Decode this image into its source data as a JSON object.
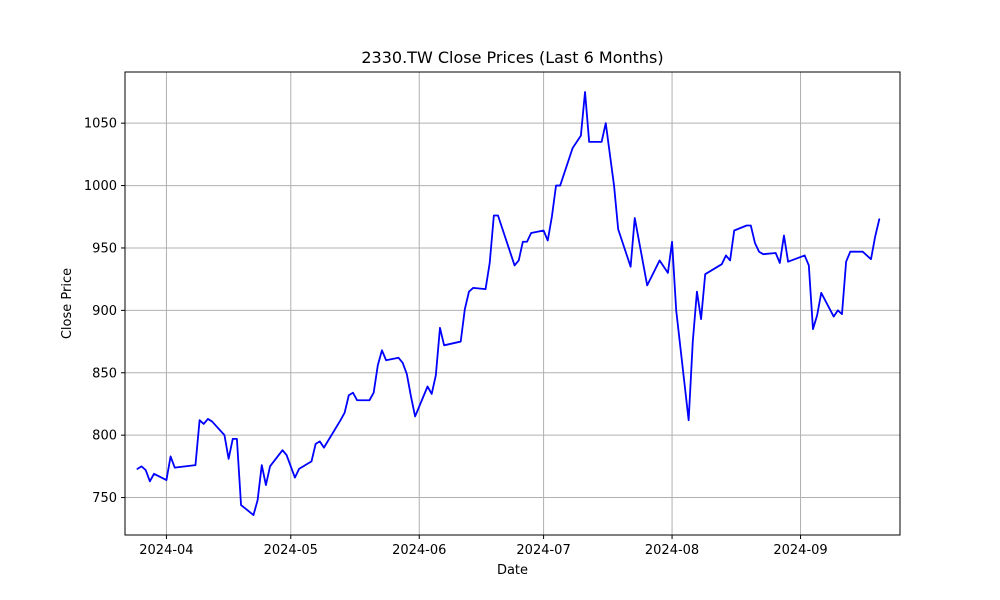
{
  "chart_data": {
    "type": "line",
    "title": "2330.TW Close Prices (Last 6 Months)",
    "xlabel": "Date",
    "ylabel": "Close Price",
    "grid": true,
    "xlim": [
      "2024-03-22",
      "2024-09-25"
    ],
    "ylim": [
      720,
      1091
    ],
    "x_ticks": [
      "2024-04-01",
      "2024-05-01",
      "2024-06-01",
      "2024-07-01",
      "2024-08-01",
      "2024-09-01"
    ],
    "x_tick_labels": [
      "2024-04",
      "2024-05",
      "2024-06",
      "2024-07",
      "2024-08",
      "2024-09"
    ],
    "y_ticks": [
      750,
      800,
      850,
      900,
      950,
      1000,
      1050
    ],
    "y_tick_labels": [
      "750",
      "800",
      "850",
      "900",
      "950",
      "1000",
      "1050"
    ],
    "series": [
      {
        "color": "#0000ff",
        "points": [
          [
            "2024-03-25",
            773
          ],
          [
            "2024-03-26",
            775
          ],
          [
            "2024-03-27",
            772
          ],
          [
            "2024-03-28",
            763
          ],
          [
            "2024-03-29",
            769
          ],
          [
            "2024-04-01",
            764
          ],
          [
            "2024-04-02",
            783
          ],
          [
            "2024-04-03",
            774
          ],
          [
            "2024-04-08",
            776
          ],
          [
            "2024-04-09",
            812
          ],
          [
            "2024-04-10",
            809
          ],
          [
            "2024-04-11",
            813
          ],
          [
            "2024-04-12",
            811
          ],
          [
            "2024-04-15",
            800
          ],
          [
            "2024-04-16",
            781
          ],
          [
            "2024-04-17",
            797
          ],
          [
            "2024-04-18",
            797
          ],
          [
            "2024-04-19",
            744
          ],
          [
            "2024-04-22",
            736
          ],
          [
            "2024-04-23",
            748
          ],
          [
            "2024-04-24",
            776
          ],
          [
            "2024-04-25",
            760
          ],
          [
            "2024-04-26",
            775
          ],
          [
            "2024-04-29",
            788
          ],
          [
            "2024-04-30",
            784
          ],
          [
            "2024-05-02",
            766
          ],
          [
            "2024-05-03",
            773
          ],
          [
            "2024-05-06",
            779
          ],
          [
            "2024-05-07",
            793
          ],
          [
            "2024-05-08",
            795
          ],
          [
            "2024-05-09",
            790
          ],
          [
            "2024-05-13",
            812
          ],
          [
            "2024-05-14",
            818
          ],
          [
            "2024-05-15",
            832
          ],
          [
            "2024-05-16",
            834
          ],
          [
            "2024-05-17",
            828
          ],
          [
            "2024-05-20",
            828
          ],
          [
            "2024-05-21",
            834
          ],
          [
            "2024-05-22",
            856
          ],
          [
            "2024-05-23",
            868
          ],
          [
            "2024-05-24",
            860
          ],
          [
            "2024-05-27",
            862
          ],
          [
            "2024-05-28",
            858
          ],
          [
            "2024-05-29",
            849
          ],
          [
            "2024-05-30",
            831
          ],
          [
            "2024-05-31",
            815
          ],
          [
            "2024-06-03",
            839
          ],
          [
            "2024-06-04",
            833
          ],
          [
            "2024-06-05",
            848
          ],
          [
            "2024-06-06",
            886
          ],
          [
            "2024-06-07",
            872
          ],
          [
            "2024-06-11",
            875
          ],
          [
            "2024-06-12",
            901
          ],
          [
            "2024-06-13",
            915
          ],
          [
            "2024-06-14",
            918
          ],
          [
            "2024-06-17",
            917
          ],
          [
            "2024-06-18",
            938
          ],
          [
            "2024-06-19",
            976
          ],
          [
            "2024-06-20",
            976
          ],
          [
            "2024-06-24",
            936
          ],
          [
            "2024-06-25",
            940
          ],
          [
            "2024-06-26",
            955
          ],
          [
            "2024-06-27",
            955
          ],
          [
            "2024-06-28",
            962
          ],
          [
            "2024-07-01",
            964
          ],
          [
            "2024-07-02",
            956
          ],
          [
            "2024-07-03",
            975
          ],
          [
            "2024-07-04",
            1000
          ],
          [
            "2024-07-05",
            1000
          ],
          [
            "2024-07-08",
            1030
          ],
          [
            "2024-07-10",
            1040
          ],
          [
            "2024-07-11",
            1075
          ],
          [
            "2024-07-12",
            1035
          ],
          [
            "2024-07-15",
            1035
          ],
          [
            "2024-07-16",
            1050
          ],
          [
            "2024-07-17",
            1025
          ],
          [
            "2024-07-18",
            1000
          ],
          [
            "2024-07-19",
            965
          ],
          [
            "2024-07-22",
            935
          ],
          [
            "2024-07-23",
            974
          ],
          [
            "2024-07-26",
            920
          ],
          [
            "2024-07-29",
            940
          ],
          [
            "2024-07-31",
            930
          ],
          [
            "2024-08-01",
            955
          ],
          [
            "2024-08-02",
            900
          ],
          [
            "2024-08-05",
            812
          ],
          [
            "2024-08-06",
            875
          ],
          [
            "2024-08-07",
            915
          ],
          [
            "2024-08-08",
            893
          ],
          [
            "2024-08-09",
            929
          ],
          [
            "2024-08-12",
            935
          ],
          [
            "2024-08-13",
            937
          ],
          [
            "2024-08-14",
            944
          ],
          [
            "2024-08-15",
            940
          ],
          [
            "2024-08-16",
            964
          ],
          [
            "2024-08-19",
            968
          ],
          [
            "2024-08-20",
            968
          ],
          [
            "2024-08-21",
            954
          ],
          [
            "2024-08-22",
            947
          ],
          [
            "2024-08-23",
            945
          ],
          [
            "2024-08-26",
            946
          ],
          [
            "2024-08-27",
            938
          ],
          [
            "2024-08-28",
            960
          ],
          [
            "2024-08-29",
            939
          ],
          [
            "2024-09-02",
            944
          ],
          [
            "2024-09-03",
            936
          ],
          [
            "2024-09-04",
            885
          ],
          [
            "2024-09-05",
            896
          ],
          [
            "2024-09-06",
            914
          ],
          [
            "2024-09-09",
            895
          ],
          [
            "2024-09-10",
            900
          ],
          [
            "2024-09-11",
            897
          ],
          [
            "2024-09-12",
            939
          ],
          [
            "2024-09-13",
            947
          ],
          [
            "2024-09-16",
            947
          ],
          [
            "2024-09-18",
            941
          ],
          [
            "2024-09-19",
            959
          ],
          [
            "2024-09-20",
            973
          ]
        ]
      }
    ]
  }
}
